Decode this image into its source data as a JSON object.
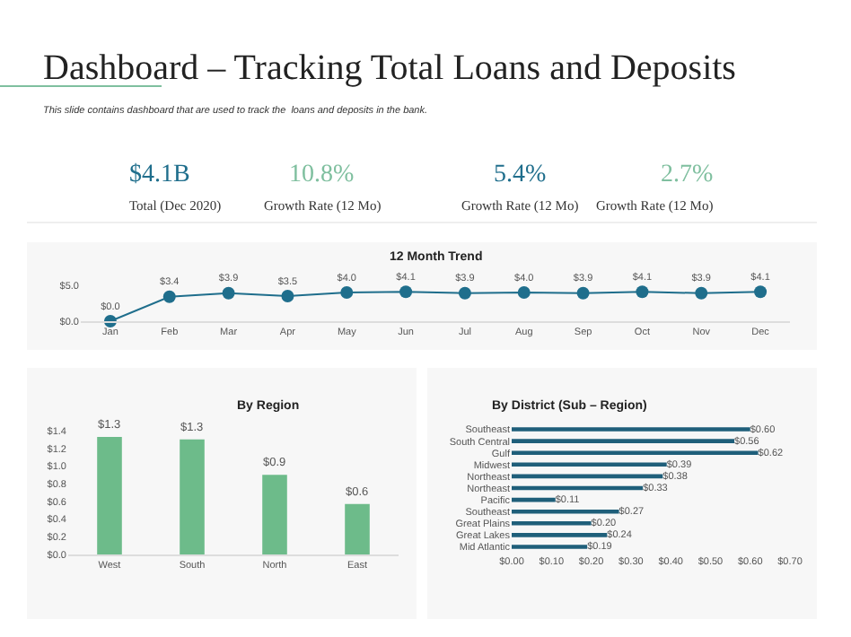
{
  "chart_data": [
    {
      "type": "other",
      "title": "Dashboard – Tracking Total Loans and Deposits",
      "subtitle": "This slide contains dashboard that are used to track the  loans and deposits in the bank.",
      "categories": [
        "Total (Dec 2020)",
        "Growth Rate (12 Mo)",
        "Growth Rate (12 Mo)",
        "Growth Rate (12 Mo)"
      ],
      "value_labels": [
        "$4.1B",
        "10.8%",
        "5.4%",
        "2.7%"
      ],
      "colors": [
        "#1f6e8c",
        "#7fbf9f",
        "#1f6e8c",
        "#7fbf9f"
      ]
    },
    {
      "type": "line",
      "title": "12 Month Trend",
      "categories": [
        "Jan",
        "Feb",
        "Mar",
        "Apr",
        "May",
        "Jun",
        "Jul",
        "Aug",
        "Sep",
        "Oct",
        "Nov",
        "Dec"
      ],
      "series": [
        {
          "color": "#1f6e8c",
          "values": [
            0.0,
            3.4,
            3.9,
            3.5,
            4.0,
            4.1,
            3.9,
            4.0,
            3.9,
            4.1,
            3.9,
            4.1
          ]
        }
      ],
      "ylim": [
        0,
        5
      ],
      "yticks": [
        {
          "value": 0,
          "label": "$0.0"
        },
        {
          "value": 5,
          "label": "$5.0"
        }
      ],
      "marker": "circle",
      "line_style": "solid",
      "value_labels": [
        "$0.0",
        "$3.4",
        "$3.9",
        "$3.5",
        "$4.0",
        "$4.1",
        "$3.9",
        "$4.0",
        "$3.9",
        "$4.1",
        "$3.9",
        "$4.1"
      ]
    },
    {
      "type": "bar",
      "title": "By Region",
      "categories": [
        "West",
        "South",
        "North",
        "East"
      ],
      "values": [
        1.33,
        1.3,
        0.9,
        0.57
      ],
      "value_labels": [
        "$1.3",
        "$1.3",
        "$0.9",
        "$0.6"
      ],
      "color": "#6dbb8a",
      "ylim": [
        0,
        1.4
      ],
      "yticks": [
        {
          "value": 0,
          "label": "$0.0"
        },
        {
          "value": 0.2,
          "label": "$0.2"
        },
        {
          "value": 0.4,
          "label": "$0.4"
        },
        {
          "value": 0.6,
          "label": "$0.6"
        },
        {
          "value": 0.8,
          "label": "$0.8"
        },
        {
          "value": 1.0,
          "label": "$1.0"
        },
        {
          "value": 1.2,
          "label": "$1.2"
        },
        {
          "value": 1.4,
          "label": "$1.4"
        }
      ]
    },
    {
      "type": "bar",
      "orientation": "horizontal",
      "title": "By District (Sub – Region)",
      "categories": [
        "Southeast",
        "South Central",
        "Gulf",
        "Midwest",
        "Northeast",
        "Northeast",
        "Pacific",
        "Southeast",
        "Great Plains",
        "Great Lakes",
        "Mid Atlantic"
      ],
      "values": [
        0.6,
        0.56,
        0.62,
        0.39,
        0.38,
        0.33,
        0.11,
        0.27,
        0.2,
        0.24,
        0.19
      ],
      "value_labels": [
        "$0.60",
        "$0.56",
        "$0.62",
        "$0.39",
        "$0.38",
        "$0.33",
        "$0.11",
        "$0.27",
        "$0.20",
        "$0.24",
        "$0.19"
      ],
      "color": "#1f5f7a",
      "xlim": [
        0,
        0.7
      ],
      "xticks": [
        {
          "value": 0,
          "label": "$0.00"
        },
        {
          "value": 0.1,
          "label": "$0.10"
        },
        {
          "value": 0.2,
          "label": "$0.20"
        },
        {
          "value": 0.3,
          "label": "$0.30"
        },
        {
          "value": 0.4,
          "label": "$0.40"
        },
        {
          "value": 0.5,
          "label": "$0.50"
        },
        {
          "value": 0.6,
          "label": "$0.60"
        },
        {
          "value": 0.7,
          "label": "$0.70"
        }
      ]
    }
  ]
}
